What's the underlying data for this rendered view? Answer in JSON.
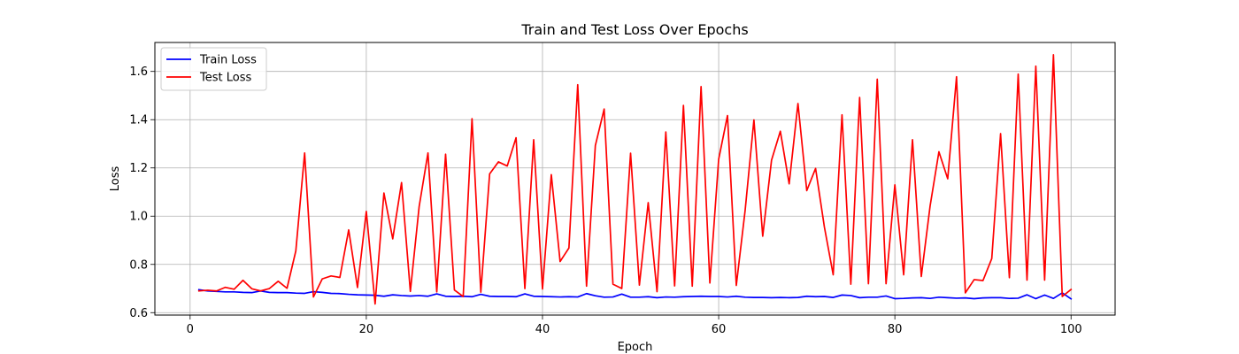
{
  "chart_data": {
    "type": "line",
    "title": "Train and Test Loss Over Epochs",
    "xlabel": "Epoch",
    "ylabel": "Loss",
    "xlim": [
      -4,
      105
    ],
    "ylim": [
      0.59,
      1.72
    ],
    "xticks": [
      0,
      20,
      40,
      60,
      80,
      100
    ],
    "yticks": [
      0.6,
      0.8,
      1.0,
      1.2,
      1.4,
      1.6
    ],
    "grid": true,
    "legend_position": "top-left",
    "x": [
      1,
      2,
      3,
      4,
      5,
      6,
      7,
      8,
      9,
      10,
      11,
      12,
      13,
      14,
      15,
      16,
      17,
      18,
      19,
      20,
      21,
      22,
      23,
      24,
      25,
      26,
      27,
      28,
      29,
      30,
      31,
      32,
      33,
      34,
      35,
      36,
      37,
      38,
      39,
      40,
      41,
      42,
      43,
      44,
      45,
      46,
      47,
      48,
      49,
      50,
      51,
      52,
      53,
      54,
      55,
      56,
      57,
      58,
      59,
      60,
      61,
      62,
      63,
      64,
      65,
      66,
      67,
      68,
      69,
      70,
      71,
      72,
      73,
      74,
      75,
      76,
      77,
      78,
      79,
      80,
      81,
      82,
      83,
      84,
      85,
      86,
      87,
      88,
      89,
      90,
      91,
      92,
      93,
      94,
      95,
      96,
      97,
      98,
      99,
      100
    ],
    "series": [
      {
        "name": "Train Loss",
        "color": "#0000ff",
        "values": [
          0.695,
          0.69,
          0.688,
          0.686,
          0.686,
          0.684,
          0.683,
          0.69,
          0.684,
          0.683,
          0.683,
          0.681,
          0.68,
          0.687,
          0.684,
          0.68,
          0.679,
          0.676,
          0.674,
          0.673,
          0.672,
          0.668,
          0.674,
          0.671,
          0.669,
          0.671,
          0.668,
          0.678,
          0.668,
          0.667,
          0.668,
          0.666,
          0.676,
          0.668,
          0.667,
          0.667,
          0.666,
          0.678,
          0.668,
          0.667,
          0.666,
          0.665,
          0.666,
          0.665,
          0.679,
          0.67,
          0.664,
          0.665,
          0.677,
          0.664,
          0.664,
          0.666,
          0.662,
          0.665,
          0.664,
          0.666,
          0.667,
          0.668,
          0.667,
          0.667,
          0.665,
          0.668,
          0.664,
          0.663,
          0.663,
          0.662,
          0.663,
          0.662,
          0.663,
          0.668,
          0.666,
          0.667,
          0.663,
          0.673,
          0.671,
          0.662,
          0.664,
          0.664,
          0.669,
          0.658,
          0.659,
          0.661,
          0.662,
          0.659,
          0.664,
          0.662,
          0.66,
          0.661,
          0.658,
          0.661,
          0.662,
          0.662,
          0.659,
          0.66,
          0.674,
          0.658,
          0.673,
          0.659,
          0.682,
          0.657
        ]
      },
      {
        "name": "Test Loss",
        "color": "#ff0000",
        "values": [
          0.69,
          0.693,
          0.69,
          0.705,
          0.697,
          0.734,
          0.699,
          0.69,
          0.7,
          0.73,
          0.701,
          0.856,
          1.262,
          0.665,
          0.74,
          0.752,
          0.746,
          0.943,
          0.704,
          1.02,
          0.636,
          1.096,
          0.906,
          1.139,
          0.688,
          1.04,
          1.262,
          0.686,
          1.257,
          0.694,
          0.667,
          1.404,
          0.685,
          1.175,
          1.225,
          1.208,
          1.325,
          0.7,
          1.317,
          0.698,
          1.172,
          0.812,
          0.868,
          1.545,
          0.71,
          1.293,
          1.444,
          0.718,
          0.7,
          1.261,
          0.714,
          1.056,
          0.687,
          1.349,
          0.711,
          1.459,
          0.71,
          1.537,
          0.723,
          1.236,
          1.417,
          0.713,
          1.023,
          1.399,
          0.917,
          1.232,
          1.352,
          1.134,
          1.467,
          1.106,
          1.198,
          0.955,
          0.757,
          1.42,
          0.718,
          1.492,
          0.72,
          1.568,
          0.72,
          1.13,
          0.757,
          1.317,
          0.75,
          1.042,
          1.267,
          1.155,
          1.578,
          0.682,
          0.737,
          0.733,
          0.824,
          1.342,
          0.745,
          1.589,
          0.735,
          1.622,
          0.735,
          1.669,
          0.667,
          0.696
        ]
      }
    ]
  }
}
